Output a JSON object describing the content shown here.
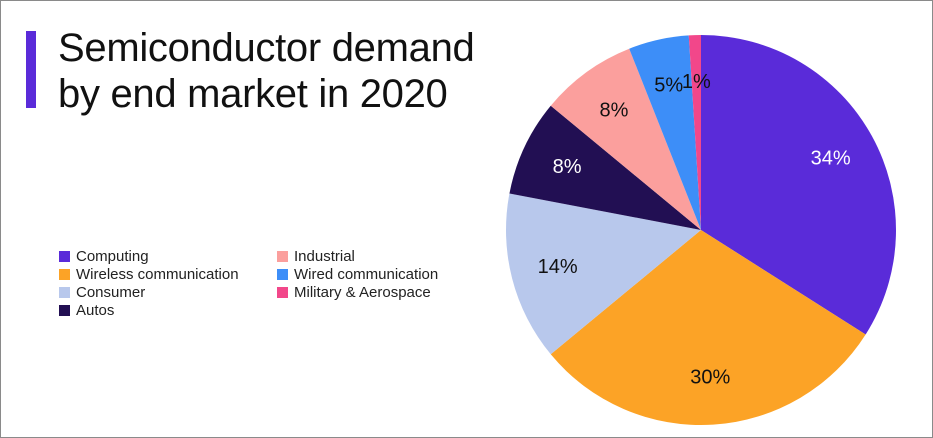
{
  "title": {
    "line1": "Semiconductor demand",
    "line2": "by end market in 2020"
  },
  "colors": {
    "accent": "#5a2bd9",
    "frame": "#8a8a8a"
  },
  "chart_data": {
    "type": "pie",
    "title": "Semiconductor demand by end market in 2020",
    "start_angle_deg": 0,
    "direction": "clockwise",
    "legend_position": "left",
    "slices": [
      {
        "label": "Computing",
        "value": 34,
        "display": "34%",
        "color": "#5a2bd9",
        "text_color": "#ffffff"
      },
      {
        "label": "Wireless communication",
        "value": 30,
        "display": "30%",
        "color": "#fca326",
        "text_color": "#111111"
      },
      {
        "label": "Consumer",
        "value": 14,
        "display": "14%",
        "color": "#b8c8ec",
        "text_color": "#111111"
      },
      {
        "label": "Autos",
        "value": 8,
        "display": "8%",
        "color": "#220f53",
        "text_color": "#ffffff"
      },
      {
        "label": "Industrial",
        "value": 8,
        "display": "8%",
        "color": "#fb9f9d",
        "text_color": "#111111"
      },
      {
        "label": "Wired communication",
        "value": 5,
        "display": "5%",
        "color": "#3d8ef8",
        "text_color": "#111111"
      },
      {
        "label": "Military & Aerospace",
        "value": 1,
        "display": "1%",
        "color": "#f2478a",
        "text_color": "#111111"
      }
    ]
  }
}
